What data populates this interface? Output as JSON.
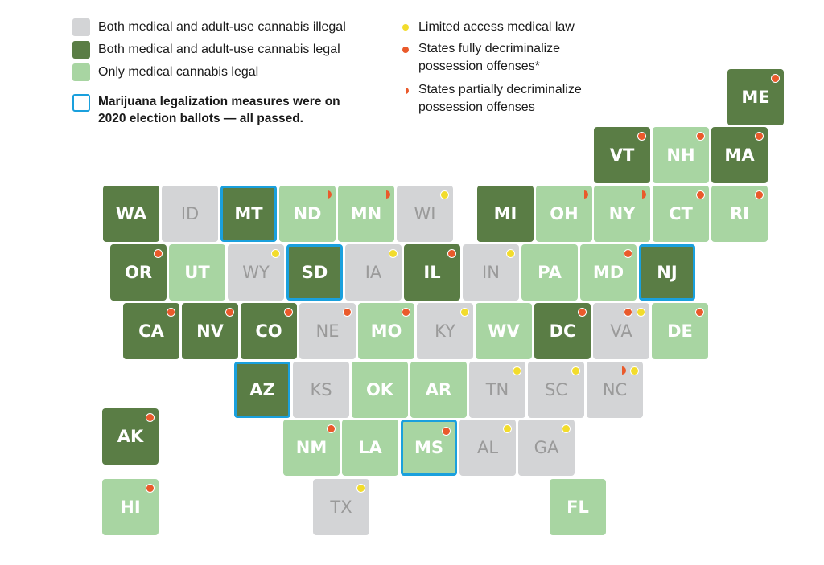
{
  "colors": {
    "illegal": "#d3d4d6",
    "legal": "#5a7d45",
    "medical": "#a8d5a2",
    "ballot_border": "#1aa0dd",
    "limited_dot": "#f2dc2c",
    "decrim_dot": "#ea5a2b"
  },
  "legend": {
    "illegal": "Both medical and adult-use cannabis illegal",
    "legal": "Both medical and adult-use cannabis legal",
    "medical": "Only medical cannabis legal",
    "ballot_line1": "Marijuana legalization measures were on",
    "ballot_line2": "2020 election ballots — all passed.",
    "limited": "Limited access medical law",
    "full_line1": "States fully decriminalize",
    "full_line2": "possession offenses*",
    "partial_line1": "States partially decriminalize",
    "partial_line2": "possession offenses"
  },
  "states": [
    {
      "abbr": "ME",
      "status": "legal",
      "marks": [
        "full"
      ]
    },
    {
      "abbr": "VT",
      "status": "legal",
      "marks": [
        "full"
      ]
    },
    {
      "abbr": "NH",
      "status": "medical",
      "marks": [
        "full"
      ]
    },
    {
      "abbr": "MA",
      "status": "legal",
      "marks": [
        "full"
      ]
    },
    {
      "abbr": "WA",
      "status": "legal",
      "marks": []
    },
    {
      "abbr": "ID",
      "status": "illegal",
      "marks": []
    },
    {
      "abbr": "MT",
      "status": "legal",
      "ballot": true,
      "marks": []
    },
    {
      "abbr": "ND",
      "status": "medical",
      "marks": [
        "partial"
      ]
    },
    {
      "abbr": "MN",
      "status": "medical",
      "marks": [
        "partial"
      ]
    },
    {
      "abbr": "WI",
      "status": "illegal",
      "marks": [
        "limited"
      ]
    },
    {
      "abbr": "MI",
      "status": "legal",
      "marks": []
    },
    {
      "abbr": "OH",
      "status": "medical",
      "marks": [
        "partial"
      ]
    },
    {
      "abbr": "NY",
      "status": "medical",
      "marks": [
        "partial"
      ]
    },
    {
      "abbr": "CT",
      "status": "medical",
      "marks": [
        "full"
      ]
    },
    {
      "abbr": "RI",
      "status": "medical",
      "marks": [
        "full"
      ]
    },
    {
      "abbr": "OR",
      "status": "legal",
      "marks": [
        "full"
      ]
    },
    {
      "abbr": "UT",
      "status": "medical",
      "marks": []
    },
    {
      "abbr": "WY",
      "status": "illegal",
      "marks": [
        "limited"
      ]
    },
    {
      "abbr": "SD",
      "status": "legal",
      "ballot": true,
      "marks": []
    },
    {
      "abbr": "IA",
      "status": "illegal",
      "marks": [
        "limited"
      ]
    },
    {
      "abbr": "IL",
      "status": "legal",
      "marks": [
        "full"
      ]
    },
    {
      "abbr": "IN",
      "status": "illegal",
      "marks": [
        "limited"
      ]
    },
    {
      "abbr": "PA",
      "status": "medical",
      "marks": []
    },
    {
      "abbr": "MD",
      "status": "medical",
      "marks": [
        "full"
      ]
    },
    {
      "abbr": "NJ",
      "status": "legal",
      "ballot": true,
      "marks": []
    },
    {
      "abbr": "CA",
      "status": "legal",
      "marks": [
        "full"
      ]
    },
    {
      "abbr": "NV",
      "status": "legal",
      "marks": [
        "full"
      ]
    },
    {
      "abbr": "CO",
      "status": "legal",
      "marks": [
        "full"
      ]
    },
    {
      "abbr": "NE",
      "status": "illegal",
      "marks": [
        "full"
      ]
    },
    {
      "abbr": "MO",
      "status": "medical",
      "marks": [
        "full"
      ]
    },
    {
      "abbr": "KY",
      "status": "illegal",
      "marks": [
        "limited"
      ]
    },
    {
      "abbr": "WV",
      "status": "medical",
      "marks": []
    },
    {
      "abbr": "DC",
      "status": "legal",
      "marks": [
        "full"
      ]
    },
    {
      "abbr": "VA",
      "status": "illegal",
      "marks": [
        "full",
        "limited"
      ]
    },
    {
      "abbr": "DE",
      "status": "medical",
      "marks": [
        "full"
      ]
    },
    {
      "abbr": "AZ",
      "status": "legal",
      "ballot": true,
      "marks": []
    },
    {
      "abbr": "KS",
      "status": "illegal",
      "marks": []
    },
    {
      "abbr": "OK",
      "status": "medical",
      "marks": []
    },
    {
      "abbr": "AR",
      "status": "medical",
      "marks": []
    },
    {
      "abbr": "TN",
      "status": "illegal",
      "marks": [
        "limited"
      ]
    },
    {
      "abbr": "SC",
      "status": "illegal",
      "marks": [
        "limited"
      ]
    },
    {
      "abbr": "NC",
      "status": "illegal",
      "marks": [
        "partial",
        "limited"
      ]
    },
    {
      "abbr": "AK",
      "status": "legal",
      "marks": [
        "full"
      ]
    },
    {
      "abbr": "NM",
      "status": "medical",
      "marks": [
        "full"
      ]
    },
    {
      "abbr": "LA",
      "status": "medical",
      "marks": []
    },
    {
      "abbr": "MS",
      "status": "medical",
      "ballot": true,
      "marks": [
        "full"
      ]
    },
    {
      "abbr": "AL",
      "status": "illegal",
      "marks": [
        "limited"
      ]
    },
    {
      "abbr": "GA",
      "status": "illegal",
      "marks": [
        "limited"
      ]
    },
    {
      "abbr": "HI",
      "status": "medical",
      "marks": [
        "full"
      ]
    },
    {
      "abbr": "TX",
      "status": "illegal",
      "marks": [
        "limited"
      ]
    },
    {
      "abbr": "FL",
      "status": "medical",
      "marks": []
    }
  ]
}
